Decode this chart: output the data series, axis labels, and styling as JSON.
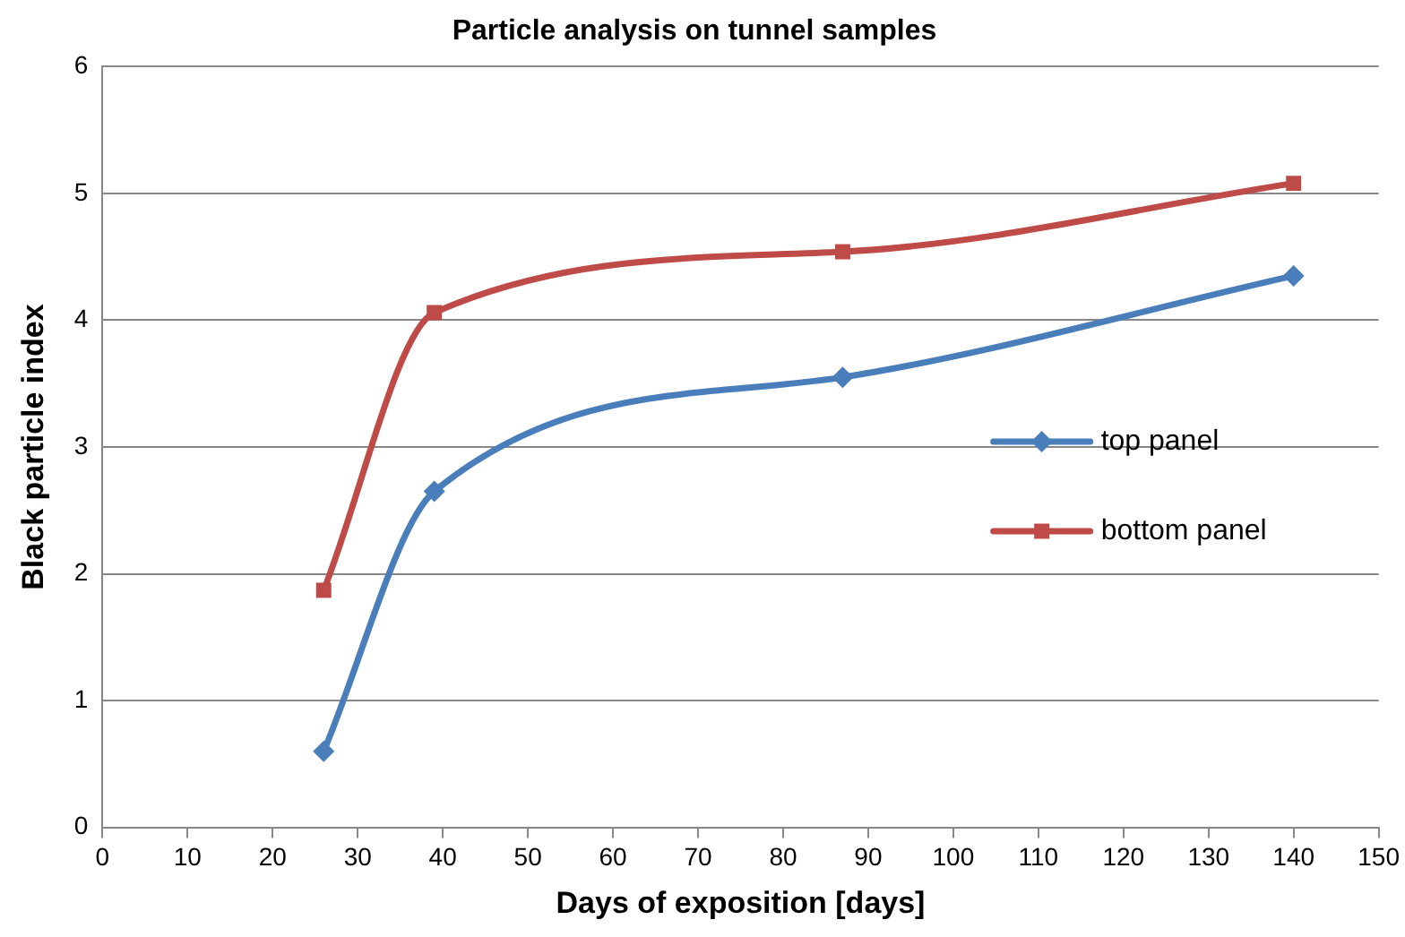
{
  "chart_data": {
    "type": "line",
    "title": "Particle analysis on tunnel samples",
    "xlabel": "Days of exposition [days]",
    "ylabel": "Black particle index",
    "xlim": [
      0,
      150
    ],
    "xticks": [
      0,
      10,
      20,
      30,
      40,
      50,
      60,
      70,
      80,
      90,
      100,
      110,
      120,
      130,
      140,
      150
    ],
    "ylim": [
      0,
      6
    ],
    "yticks": [
      0,
      1,
      2,
      3,
      4,
      5,
      6
    ],
    "grid": "y",
    "legend": "right",
    "line_style": "solid",
    "series": [
      {
        "name": "top panel",
        "color": "#4a7ebb",
        "marker": "diamond",
        "x": [
          26,
          39,
          87,
          140
        ],
        "values": [
          0.6,
          2.65,
          3.55,
          4.35
        ]
      },
      {
        "name": "bottom panel",
        "color": "#be4b48",
        "marker": "square",
        "x": [
          26,
          39,
          87,
          140
        ],
        "values": [
          1.87,
          4.06,
          4.54,
          5.08
        ]
      }
    ]
  }
}
